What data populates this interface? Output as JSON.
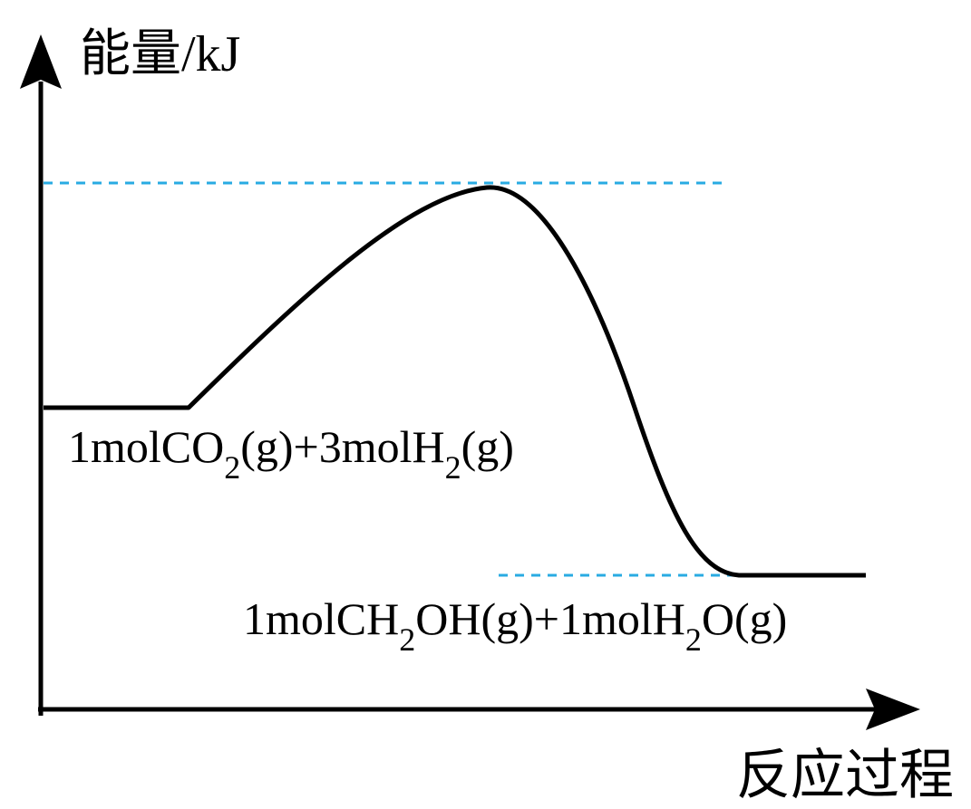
{
  "axes": {
    "y_label": "能量/kJ",
    "x_label": "反应过程"
  },
  "reactants": {
    "parts": [
      "1molCO",
      "2",
      "(g)+3molH",
      "2",
      "(g)"
    ]
  },
  "products": {
    "parts": [
      "1molCH",
      "2",
      "OH(g)+1molH",
      "2",
      "O(g)"
    ]
  }
}
